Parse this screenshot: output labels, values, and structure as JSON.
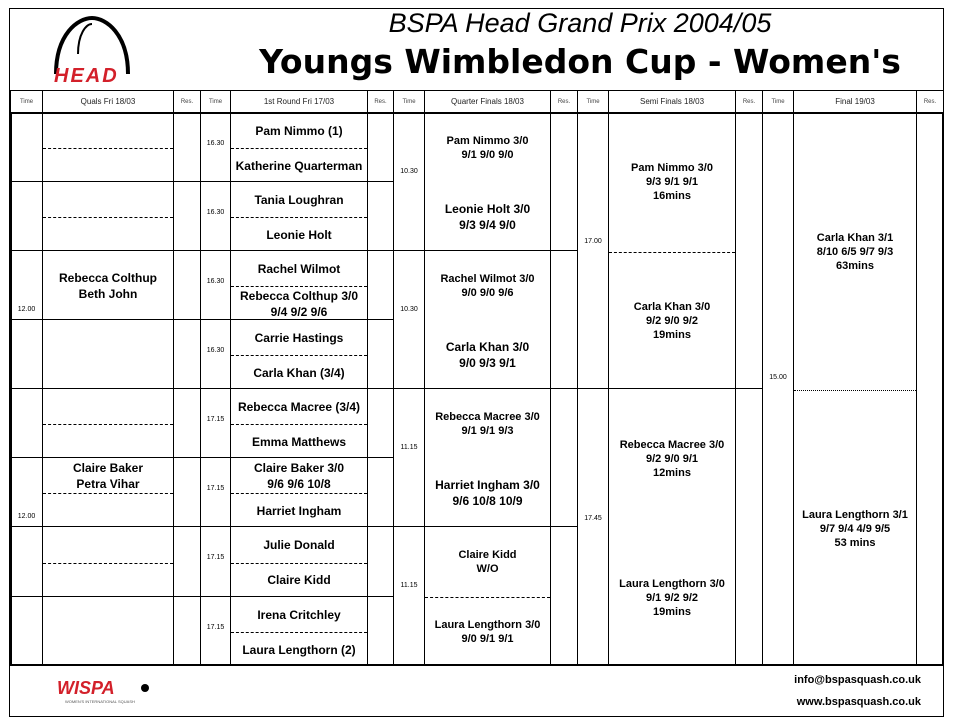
{
  "title_line1": "BSPA Head Grand Prix 2004/05",
  "title_line2": "Youngs Wimbledon Cup - Women's",
  "logos": {
    "head": "HEAD",
    "wispa": "WISPA",
    "wispa_sub": "WOMEN'S INTERNATIONAL SQUASH"
  },
  "headers": [
    "Time",
    "Quals Fri 18/03",
    "Res.",
    "Time",
    "1st Round Fri 17/03",
    "Res.",
    "Time",
    "Quarter Finals 18/03",
    "Res.",
    "Time",
    "Semi Finals 18/03",
    "Res.",
    "Time",
    "Final 19/03",
    "Res."
  ],
  "quals": [
    {
      "slots": [
        "",
        ""
      ]
    },
    {
      "slots": [
        "",
        ""
      ]
    },
    {
      "slots": [
        "Rebecca Colthup\nBeth John"
      ],
      "time": "12.00"
    },
    {
      "slots": [
        ""
      ]
    },
    {
      "slots": [
        "",
        ""
      ]
    },
    {
      "slots": [
        "Claire Baker\nPetra Vihar",
        ""
      ],
      "time": "12.00"
    },
    {
      "slots": [
        "",
        ""
      ]
    },
    {
      "slots": [
        ""
      ]
    }
  ],
  "round1": [
    {
      "time": "16.30",
      "slots": [
        "Pam Nimmo (1)",
        "Katherine Quarterman"
      ]
    },
    {
      "time": "16.30",
      "slots": [
        "Tania Loughran",
        "Leonie Holt"
      ]
    },
    {
      "time": "16.30",
      "slots": [
        "Rachel Wilmot",
        "Rebecca Colthup 3/0\n9/4 9/2 9/6"
      ]
    },
    {
      "time": "16.30",
      "slots": [
        "Carrie Hastings",
        "Carla Khan (3/4)"
      ]
    },
    {
      "time": "17.15",
      "slots": [
        "Rebecca Macree (3/4)",
        "Emma Matthews"
      ]
    },
    {
      "time": "17.15",
      "slots": [
        "Claire Baker 3/0\n9/6 9/6 10/8",
        "Harriet Ingham"
      ]
    },
    {
      "time": "17.15",
      "slots": [
        "Julie Donald",
        "Claire Kidd"
      ]
    },
    {
      "time": "17.15",
      "slots": [
        "Irena Critchley",
        "Laura Lengthorn (2)"
      ]
    }
  ],
  "quarters": [
    {
      "time": "10.30",
      "slots": [
        "Pam Nimmo 3/0\n9/1 9/0 9/0",
        "Leonie Holt 3/0\n9/3 9/4 9/0"
      ]
    },
    {
      "time": "10.30",
      "slots": [
        "Rachel Wilmot 3/0\n9/0 9/0 9/6",
        "Carla Khan 3/0\n9/0 9/3 9/1"
      ]
    },
    {
      "time": "11.15",
      "slots": [
        "Rebecca Macree 3/0\n9/1 9/1 9/3",
        "Harriet Ingham 3/0\n9/6 10/8 10/9"
      ]
    },
    {
      "time": "11.15",
      "slots": [
        "Claire Kidd\nW/O",
        "Laura Lengthorn 3/0\n9/0 9/1 9/1"
      ]
    }
  ],
  "semis": [
    {
      "time": "17.00",
      "slots": [
        "Pam Nimmo 3/0\n9/3 9/1 9/1\n16mins",
        "Carla Khan 3/0\n9/2 9/0 9/2\n19mins"
      ]
    },
    {
      "time": "17.45",
      "slots": [
        "Rebecca Macree 3/0\n9/2 9/0 9/1\n12mins",
        "Laura Lengthorn 3/0\n9/1 9/2 9/2\n19mins"
      ]
    }
  ],
  "final": {
    "time": "15.00",
    "slots": [
      "Carla Khan 3/1\n8/10 6/5 9/7 9/3\n63mins",
      "Laura Lengthorn 3/1\n9/7 9/4 4/9 9/5\n53 mins"
    ]
  },
  "footer": {
    "email": "info@bspasquash.co.uk",
    "web": "www.bspasquash.co.uk"
  }
}
